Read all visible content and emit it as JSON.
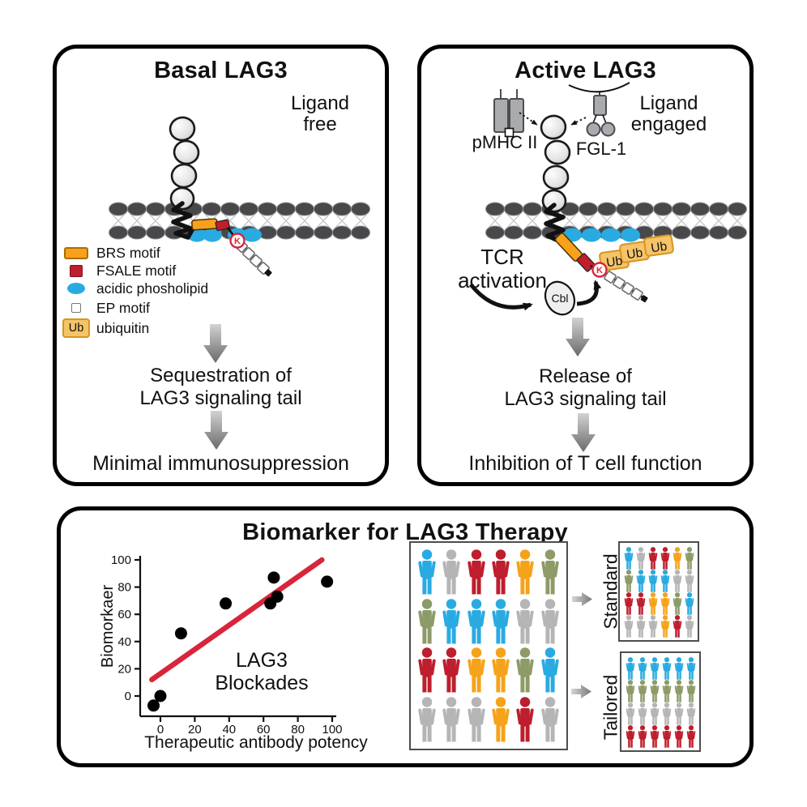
{
  "colors": {
    "brs_orange": "#f9a11b",
    "fsale_red": "#be1e2d",
    "lipid_blue": "#29abe2",
    "ub_fill": "#f5c469",
    "ub_border": "#d7941f",
    "membrane_gray": "#48484a",
    "trend_red": "#d9253b"
  },
  "basal_panel": {
    "title": "Basal LAG3",
    "state_line1": "Ligand",
    "state_line2": "free",
    "k_label": "K",
    "legend": [
      {
        "label": "BRS motif"
      },
      {
        "label": "FSALE motif"
      },
      {
        "label": "acidic phosholipid"
      },
      {
        "label": "EP motif"
      },
      {
        "label": "ubiquitin",
        "swatch_text": "Ub"
      }
    ],
    "step_line1": "Sequestration of",
    "step_line2": "LAG3 signaling tail",
    "result": "Minimal immunosuppression"
  },
  "active_panel": {
    "title": "Active LAG3",
    "state_line1": "Ligand",
    "state_line2": "engaged",
    "ligand_left": "pMHC II",
    "ligand_right": "FGL-1",
    "tcr_line1": "TCR",
    "tcr_line2": "activation",
    "cbl": "Cbl",
    "ub": "Ub",
    "k_label": "K",
    "step_line1": "Release of",
    "step_line2": "LAG3 signaling tail",
    "result": "Inhibition of T cell function"
  },
  "biomarker_panel": {
    "title": "Biomarker for LAG3 Therapy",
    "standard_label": "Standard",
    "tailored_label": "Tailored"
  },
  "chart_data": {
    "type": "scatter",
    "title": "",
    "xlabel": "Therapeutic antibody potency",
    "ylabel": "Biomorkaer",
    "annotation_line1": "LAG3",
    "annotation_line2": "Blockades",
    "x_ticks": [
      0,
      20,
      40,
      60,
      80,
      100
    ],
    "y_ticks": [
      0,
      20,
      40,
      60,
      80,
      100
    ],
    "xlim": [
      -12,
      102
    ],
    "ylim": [
      -15,
      100
    ],
    "grid": false,
    "legend_position": "none",
    "points": [
      [
        -4,
        -7
      ],
      [
        0,
        0
      ],
      [
        12,
        46
      ],
      [
        38,
        68
      ],
      [
        64,
        68
      ],
      [
        66,
        87
      ],
      [
        68,
        73
      ],
      [
        97,
        84
      ]
    ],
    "trend_line": {
      "x1": -5,
      "y1": 12,
      "x2": 94,
      "y2": 100
    },
    "point_color": "#000000",
    "trend_color": "#d9253b"
  },
  "population": {
    "palette": {
      "b": "#29abe2",
      "g": "#b5b5b5",
      "r": "#be1e2d",
      "o": "#f5a31b",
      "v": "#8d9b68"
    },
    "cohort_grid": [
      [
        "b",
        "g",
        "r",
        "r",
        "o",
        "v"
      ],
      [
        "v",
        "b",
        "b",
        "b",
        "g",
        "g"
      ],
      [
        "r",
        "r",
        "o",
        "o",
        "v",
        "b"
      ],
      [
        "g",
        "g",
        "g",
        "o",
        "r",
        "g"
      ]
    ],
    "standard_grid": [
      [
        "b",
        "g",
        "r",
        "r",
        "o",
        "v"
      ],
      [
        "v",
        "b",
        "b",
        "b",
        "g",
        "g"
      ],
      [
        "r",
        "r",
        "o",
        "o",
        "v",
        "b"
      ],
      [
        "g",
        "g",
        "g",
        "o",
        "r",
        "g"
      ]
    ],
    "tailored_grid": [
      [
        "b",
        "b",
        "b",
        "b",
        "b",
        "b"
      ],
      [
        "v",
        "v",
        "v",
        "v",
        "v",
        "v"
      ],
      [
        "g",
        "g",
        "g",
        "g",
        "g",
        "g"
      ],
      [
        "r",
        "r",
        "r",
        "r",
        "r",
        "r"
      ]
    ]
  }
}
